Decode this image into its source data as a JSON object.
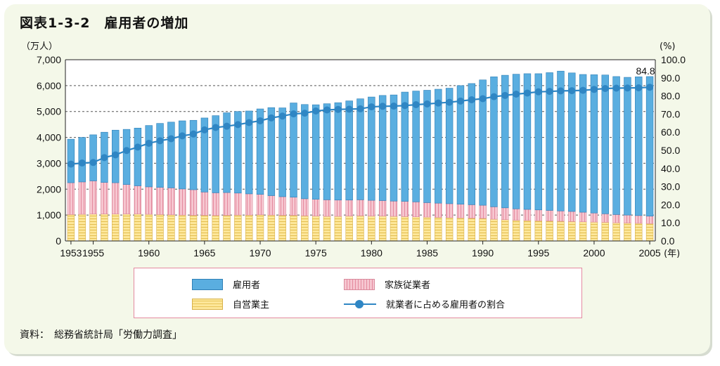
{
  "title": "図表1-3-2　雇用者の増加",
  "source": "資料：　総務省統計局「労働力調査」",
  "legend": {
    "employees": "雇用者",
    "family": "家族従業者",
    "self": "自営業主",
    "ratio": "就業者に占める雇用者の割合"
  },
  "colors": {
    "employees": "#5aaee0",
    "family": "#f6c6d0",
    "self": "#fde79a",
    "ratio": "#2f86c4"
  },
  "chart_data": {
    "type": "bar",
    "stacked": true,
    "x_start": 1953,
    "x_end": 2005,
    "categories": [
      1953,
      1954,
      1955,
      1956,
      1957,
      1958,
      1959,
      1960,
      1961,
      1962,
      1963,
      1964,
      1965,
      1966,
      1967,
      1968,
      1969,
      1970,
      1971,
      1972,
      1973,
      1974,
      1975,
      1976,
      1977,
      1978,
      1979,
      1980,
      1981,
      1982,
      1983,
      1984,
      1985,
      1986,
      1987,
      1988,
      1989,
      1990,
      1991,
      1992,
      1993,
      1994,
      1995,
      1996,
      1997,
      1998,
      1999,
      2000,
      2001,
      2002,
      2003,
      2004,
      2005
    ],
    "x_tick_labels": [
      "1953",
      "1955",
      "1960",
      "1965",
      "1970",
      "1975",
      "1980",
      "1985",
      "1990",
      "1995",
      "2000",
      "2005"
    ],
    "x_unit": "(年)",
    "left_axis": {
      "unit": "（万人）",
      "ylim": [
        0,
        7000
      ],
      "ticks": [
        "0",
        "1,000",
        "2,000",
        "3,000",
        "4,000",
        "5,000",
        "6,000",
        "7,000"
      ]
    },
    "right_axis": {
      "unit": "(%)",
      "ylim": [
        0,
        100
      ],
      "ticks": [
        "0.0",
        "10.0",
        "20.0",
        "30.0",
        "40.0",
        "50.0",
        "60.0",
        "70.0",
        "80.0",
        "90.0",
        "100.0"
      ]
    },
    "series": [
      {
        "name": "自営業主",
        "values": [
          1020,
          1030,
          1040,
          1040,
          1040,
          1040,
          1040,
          1030,
          1020,
          1010,
          1000,
          990,
          990,
          980,
          990,
          1000,
          1000,
          1010,
          1000,
          990,
          990,
          970,
          960,
          950,
          950,
          960,
          970,
          960,
          960,
          950,
          940,
          930,
          920,
          910,
          900,
          890,
          880,
          870,
          840,
          820,
          800,
          790,
          780,
          770,
          760,
          750,
          740,
          730,
          720,
          700,
          690,
          680,
          670
        ]
      },
      {
        "name": "家族従業者",
        "values": [
          1230,
          1250,
          1280,
          1220,
          1210,
          1140,
          1090,
          1060,
          1050,
          1040,
          1010,
          990,
          900,
          880,
          880,
          850,
          820,
          790,
          750,
          720,
          700,
          660,
          650,
          640,
          630,
          620,
          620,
          610,
          600,
          590,
          590,
          580,
          560,
          550,
          540,
          530,
          520,
          510,
          480,
          460,
          440,
          430,
          420,
          410,
          400,
          390,
          370,
          350,
          330,
          320,
          310,
          300,
          290
        ]
      },
      {
        "name": "雇用者",
        "values": [
          1680,
          1720,
          1780,
          1940,
          2030,
          2130,
          2230,
          2370,
          2470,
          2540,
          2630,
          2680,
          2860,
          2980,
          3080,
          3150,
          3200,
          3300,
          3400,
          3430,
          3640,
          3640,
          3650,
          3710,
          3760,
          3830,
          3900,
          3990,
          4060,
          4100,
          4220,
          4280,
          4340,
          4400,
          4460,
          4580,
          4680,
          4840,
          5020,
          5120,
          5200,
          5240,
          5260,
          5320,
          5400,
          5350,
          5320,
          5340,
          5360,
          5330,
          5320,
          5360,
          5390
        ]
      },
      {
        "name": "就業者に占める雇用者の割合",
        "axis": "right",
        "type": "line",
        "values": [
          42.4,
          43.0,
          43.3,
          46.0,
          47.5,
          49.9,
          51.8,
          53.9,
          55.3,
          56.4,
          58.0,
          59.0,
          61.3,
          62.6,
          63.3,
          64.2,
          65.3,
          66.3,
          67.9,
          68.9,
          70.1,
          70.5,
          71.7,
          72.3,
          72.6,
          72.7,
          72.9,
          74.0,
          74.3,
          74.4,
          74.7,
          75.2,
          75.6,
          76.1,
          76.5,
          77.2,
          77.9,
          78.5,
          79.6,
          80.3,
          81.0,
          81.6,
          82.3,
          82.5,
          82.8,
          82.9,
          83.1,
          83.6,
          84.1,
          84.3,
          84.4,
          84.5,
          84.8
        ]
      }
    ],
    "annotations": [
      "84.8"
    ]
  }
}
